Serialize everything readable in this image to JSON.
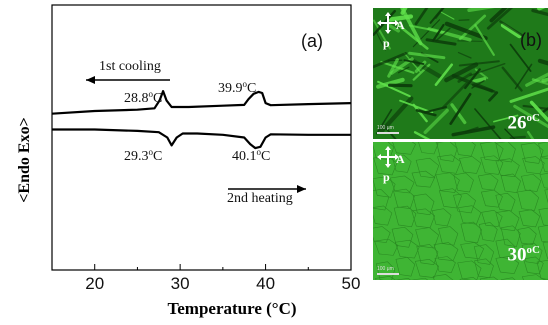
{
  "panel_a_label": "(a)",
  "panel_b_label": "(b)",
  "chart_data": {
    "type": "line",
    "xlabel": "Temperature (°C)",
    "ylabel": "<Endo Exo>",
    "xlim": [
      15,
      50
    ],
    "ylim": [
      0,
      1
    ],
    "xticks": [
      20,
      30,
      40,
      50
    ],
    "y_axis_ticks": false,
    "series": [
      {
        "name": "1st cooling",
        "x": [
          15,
          20,
          25,
          27,
          27.6,
          28.0,
          28.4,
          29.0,
          31,
          35,
          37.5,
          38.0,
          38.6,
          39.2,
          39.6,
          40.0,
          40.6,
          45,
          50
        ],
        "y": [
          0.59,
          0.6,
          0.605,
          0.61,
          0.64,
          0.675,
          0.64,
          0.615,
          0.615,
          0.62,
          0.623,
          0.645,
          0.665,
          0.672,
          0.668,
          0.63,
          0.622,
          0.626,
          0.63
        ]
      },
      {
        "name": "2nd heating",
        "x": [
          15,
          20,
          25,
          27.5,
          28.5,
          29.0,
          29.6,
          30.3,
          32,
          35,
          37.5,
          38.2,
          38.8,
          39.4,
          40.0,
          40.6,
          45,
          50
        ],
        "y": [
          0.53,
          0.53,
          0.525,
          0.52,
          0.5,
          0.47,
          0.5,
          0.515,
          0.515,
          0.51,
          0.5,
          0.475,
          0.46,
          0.465,
          0.5,
          0.512,
          0.51,
          0.51
        ]
      }
    ],
    "annotations": [
      {
        "text": "1st cooling",
        "arrow": "left"
      },
      {
        "text": "2nd heating",
        "arrow": "right"
      },
      {
        "text": "28.8",
        "unit": "oC"
      },
      {
        "text": "39.9",
        "unit": "oC"
      },
      {
        "text": "29.3",
        "unit": "oC"
      },
      {
        "text": "40.1",
        "unit": "oC"
      }
    ]
  },
  "micrographs": [
    {
      "temperature": "26",
      "unit": "oC",
      "polarizer_A": "A",
      "polarizer_P": "p",
      "scale_bar": "100 μm",
      "base_color": "#1f7a1a"
    },
    {
      "temperature": "30",
      "unit": "oC",
      "polarizer_A": "A",
      "polarizer_P": "p",
      "scale_bar": "100 μm",
      "base_color": "#3fb534"
    }
  ]
}
